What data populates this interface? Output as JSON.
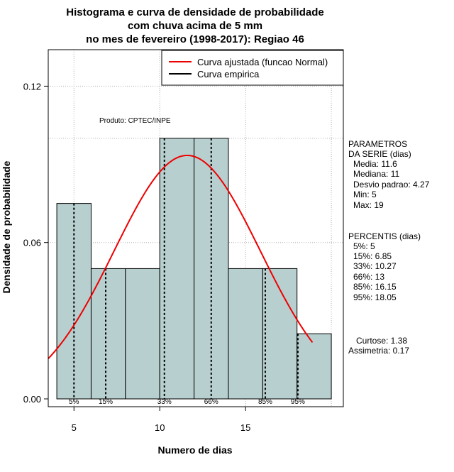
{
  "chart_data": {
    "type": "bar",
    "title_lines": [
      "Histograma e curva de densidade de probabilidade",
      "com chuva acima de 5 mm",
      "no mes de fevereiro (1998-2017): Regiao 46"
    ],
    "xlabel": "Numero de dias",
    "ylabel": "Densidade de probabilidade",
    "xlim": [
      3.5,
      20.7
    ],
    "ylim": [
      -0.003,
      0.134
    ],
    "x_ticks": [
      5,
      10,
      15
    ],
    "y_ticks": [
      0.0,
      0.06,
      0.12
    ],
    "x_tick_labels": [
      "5",
      "10",
      "15"
    ],
    "y_tick_labels": [
      "0.00",
      "0.06",
      "0.12"
    ],
    "bins": [
      {
        "start": 4,
        "end": 6,
        "density": 0.075
      },
      {
        "start": 6,
        "end": 8,
        "density": 0.05
      },
      {
        "start": 8,
        "end": 10,
        "density": 0.05
      },
      {
        "start": 10,
        "end": 12,
        "density": 0.1
      },
      {
        "start": 12,
        "end": 14,
        "density": 0.1
      },
      {
        "start": 14,
        "end": 16,
        "density": 0.05
      },
      {
        "start": 16,
        "end": 18,
        "density": 0.05
      },
      {
        "start": 18,
        "end": 20,
        "density": 0.025
      }
    ],
    "normal_curve": {
      "mean": 11.6,
      "sd": 4.27,
      "x_range": [
        3.5,
        18.9
      ]
    },
    "percentiles": [
      {
        "label": "5%",
        "value": 5
      },
      {
        "label": "15%",
        "value": 6.85
      },
      {
        "label": "33%",
        "value": 10.27
      },
      {
        "label": "66%",
        "value": 13
      },
      {
        "label": "85%",
        "value": 16.15
      },
      {
        "label": "95%",
        "value": 18.05
      }
    ],
    "h_gridlines": [
      0.06,
      0.1,
      0.12
    ],
    "v_gridlines": [
      5,
      10,
      15,
      20
    ],
    "legend": {
      "placement": "top-right",
      "entries": [
        {
          "label": "Curva ajustada (funcao Normal)",
          "color": "#ee0000"
        },
        {
          "label": "Curva empirica",
          "color": "#000000"
        }
      ]
    },
    "bar_color": "#b8cfcf",
    "curve_color": "#ee0000",
    "source_note": "Produto: CPTEC/INPE",
    "parametros": {
      "header": [
        "PARAMETROS",
        "DA SERIE (dias)"
      ],
      "lines": [
        "Media: 11.6",
        "Mediana: 11",
        "Desvio padrao: 4.27",
        "Min: 5",
        "Max: 19"
      ]
    },
    "percentis": {
      "header": "PERCENTIS (dias)",
      "lines": [
        "5%: 5",
        "15%: 6.85",
        "33%: 10.27",
        "66%: 13",
        "85%: 16.15",
        "95%: 18.05"
      ]
    },
    "shape_stats": [
      "Curtose: 1.38",
      "Assimetria: 0.17"
    ]
  }
}
